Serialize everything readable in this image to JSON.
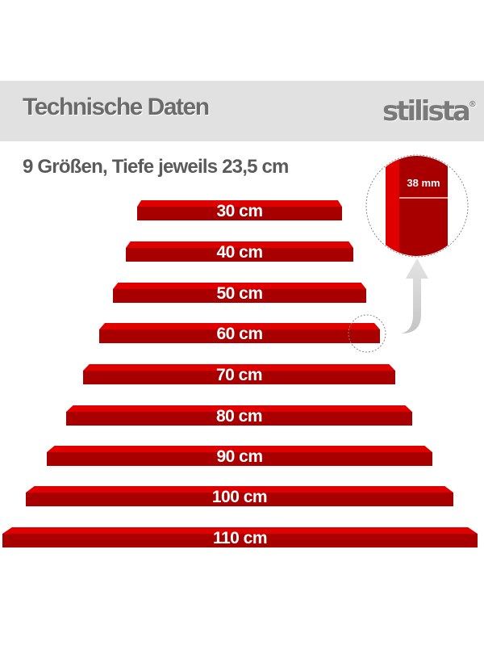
{
  "header": {
    "title": "Technische Daten",
    "logo": "stilista",
    "logo_mark": "®"
  },
  "subtitle": "9 Größen, Tiefe jeweils 23,5 cm",
  "detail": {
    "thickness_label": "38 mm"
  },
  "colors": {
    "shelf_top": "#e00000",
    "shelf_front": "#a80000",
    "header_band": "#e1e1e1"
  },
  "shelves": [
    {
      "label": "30 cm"
    },
    {
      "label": "40 cm"
    },
    {
      "label": "50 cm"
    },
    {
      "label": "60 cm"
    },
    {
      "label": "70 cm"
    },
    {
      "label": "80 cm"
    },
    {
      "label": "90 cm"
    },
    {
      "label": "100 cm"
    },
    {
      "label": "110 cm"
    }
  ]
}
